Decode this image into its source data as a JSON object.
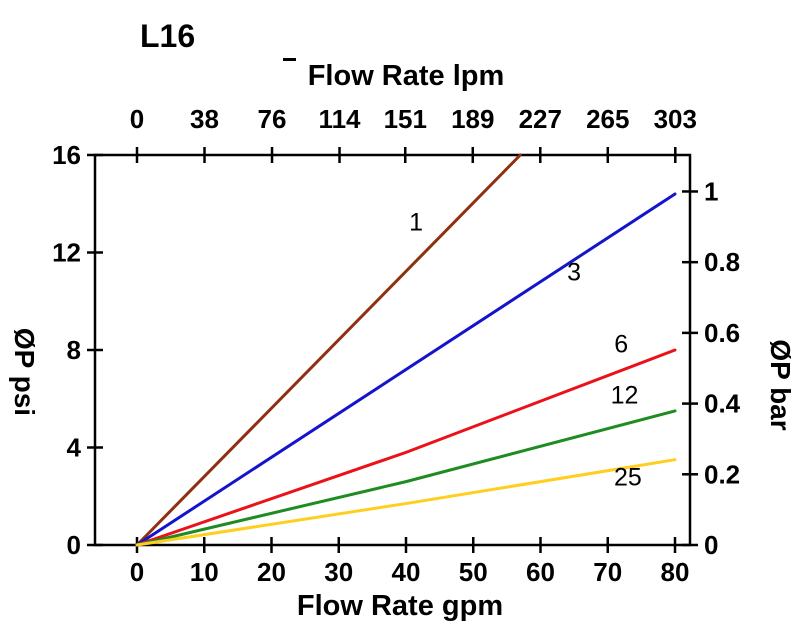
{
  "chart_data": {
    "type": "line",
    "title": "L16",
    "top_axis": {
      "label": "Flow Rate lpm",
      "ticks": [
        "0",
        "38",
        "76",
        "114",
        "151",
        "189",
        "227",
        "265",
        "303"
      ],
      "lpm_per_gpm": 3.7854
    },
    "bottom_axis": {
      "label": "Flow Rate gpm",
      "ticks": [
        "0",
        "10",
        "20",
        "30",
        "40",
        "50",
        "60",
        "70",
        "80"
      ],
      "range": [
        0,
        80
      ]
    },
    "left_axis": {
      "label": "ØP psi",
      "ticks": [
        "0",
        "4",
        "8",
        "12",
        "16"
      ],
      "range": [
        0,
        16
      ]
    },
    "right_axis": {
      "label": "ØP bar",
      "ticks": [
        "0",
        "0.2",
        "0.4",
        "0.6",
        "0.8",
        "1"
      ],
      "psi_per_bar": 14.5038
    },
    "grid": false,
    "legend": "inline-labels",
    "series": [
      {
        "name": "1",
        "color": "#8f3011",
        "points": [
          [
            0,
            0
          ],
          [
            57,
            16
          ]
        ],
        "label_pos": [
          41.5,
          12.9
        ]
      },
      {
        "name": "3",
        "color": "#1414cc",
        "points": [
          [
            0,
            0
          ],
          [
            80,
            14.4
          ]
        ],
        "label_pos": [
          65,
          10.85
        ]
      },
      {
        "name": "6",
        "color": "#ea1218",
        "points": [
          [
            0,
            0
          ],
          [
            40,
            3.8
          ],
          [
            80,
            8.0
          ]
        ],
        "label_pos": [
          72,
          7.9
        ]
      },
      {
        "name": "12",
        "color": "#1e8c22",
        "points": [
          [
            0,
            0
          ],
          [
            40,
            2.6
          ],
          [
            80,
            5.5
          ]
        ],
        "label_pos": [
          72.5,
          5.8
        ]
      },
      {
        "name": "25",
        "color": "#ffce1f",
        "points": [
          [
            0,
            0
          ],
          [
            40,
            1.7
          ],
          [
            80,
            3.5
          ]
        ],
        "label_pos": [
          73,
          2.45
        ]
      }
    ]
  }
}
